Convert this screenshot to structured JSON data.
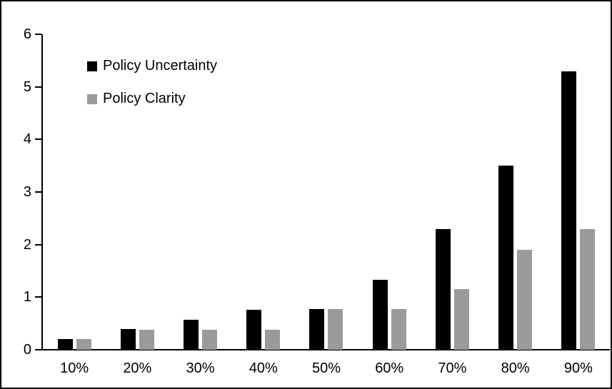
{
  "chart_data": {
    "type": "bar",
    "title": "",
    "xlabel": "",
    "ylabel": "",
    "categories": [
      "10%",
      "20%",
      "30%",
      "40%",
      "50%",
      "60%",
      "70%",
      "80%",
      "90%"
    ],
    "series": [
      {
        "name": "Policy Uncertainty",
        "color": "#000000",
        "values": [
          0.2,
          0.4,
          0.57,
          0.76,
          0.78,
          1.33,
          2.3,
          3.5,
          5.3
        ]
      },
      {
        "name": "Policy Clarity",
        "color": "#9a9a9a",
        "values": [
          0.2,
          0.38,
          0.38,
          0.38,
          0.77,
          0.77,
          1.15,
          1.9,
          2.3
        ]
      }
    ],
    "ylim": [
      0,
      6
    ],
    "y_ticks": [
      0,
      1,
      2,
      3,
      4,
      5,
      6
    ],
    "grid": false,
    "legend_position": "top-left-inside",
    "frame_color": "#000000",
    "background_color": "#ffffff"
  }
}
